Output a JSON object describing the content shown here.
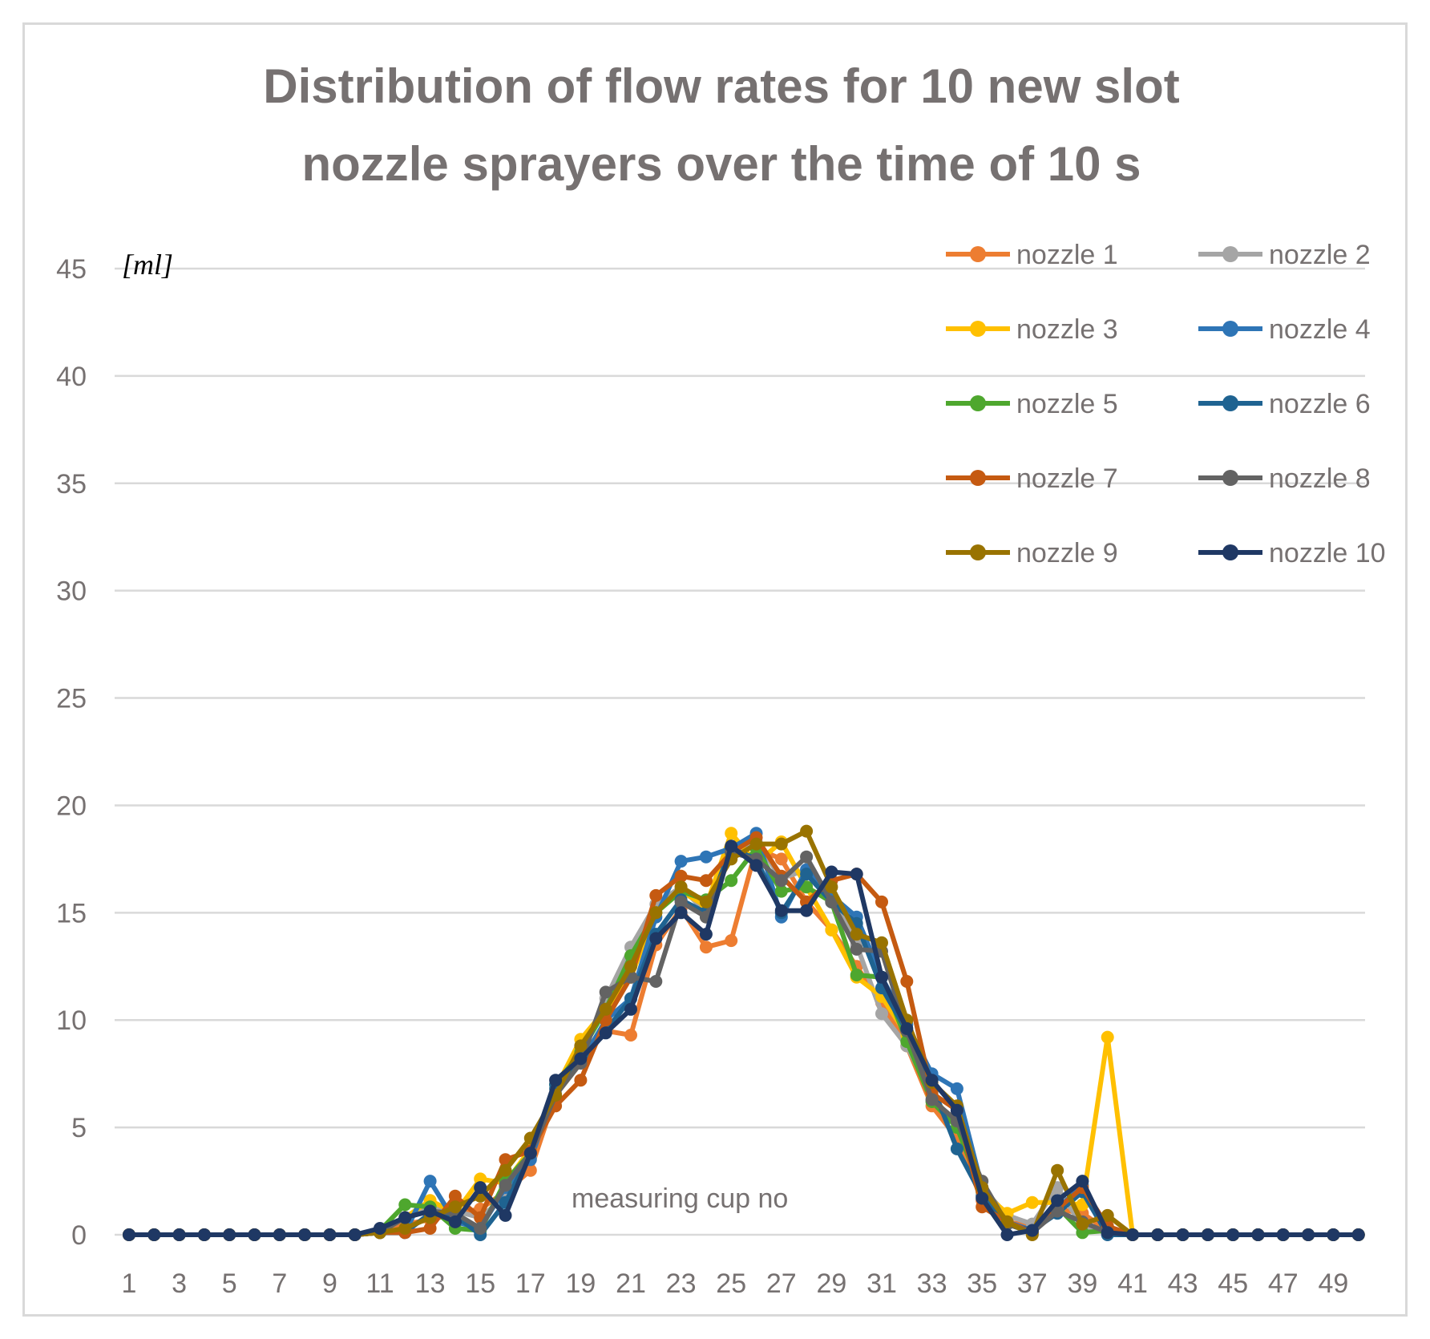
{
  "chart_data": {
    "type": "line",
    "title_lines": [
      "Distribution of flow rates for 10 new slot",
      "nozzle sprayers over the time of 10 s"
    ],
    "ylabel": "[ml]",
    "xlabel": "measuring cup no",
    "ylim": [
      0,
      45
    ],
    "yticks": [
      0,
      5,
      10,
      15,
      20,
      25,
      30,
      35,
      40,
      45
    ],
    "x": [
      1,
      2,
      3,
      4,
      5,
      6,
      7,
      8,
      9,
      10,
      11,
      12,
      13,
      14,
      15,
      16,
      17,
      18,
      19,
      20,
      21,
      22,
      23,
      24,
      25,
      26,
      27,
      28,
      29,
      30,
      31,
      32,
      33,
      34,
      35,
      36,
      37,
      38,
      39,
      40,
      41,
      42,
      43,
      44,
      45,
      46,
      47,
      48,
      49,
      50
    ],
    "xtick_labels": [
      "1",
      "3",
      "5",
      "7",
      "9",
      "11",
      "13",
      "15",
      "17",
      "19",
      "21",
      "23",
      "25",
      "27",
      "29",
      "31",
      "33",
      "35",
      "37",
      "39",
      "41",
      "43",
      "45",
      "47",
      "49"
    ],
    "grid": true,
    "legend_position": "top-right",
    "series": [
      {
        "name": "nozzle 1",
        "color": "#ED7D31",
        "values": [
          0,
          0,
          0,
          0,
          0,
          0,
          0,
          0,
          0,
          0,
          0.2,
          0.5,
          0.7,
          1,
          1.2,
          2,
          3,
          6.5,
          8,
          9.5,
          9.3,
          13.5,
          15.2,
          13.4,
          13.7,
          18,
          17.5,
          15.5,
          14.2,
          12.5,
          10.8,
          8.8,
          6,
          4.5,
          1.6,
          0.6,
          0.4,
          1.2,
          1,
          0.2,
          0,
          0,
          0,
          0,
          0,
          0,
          0,
          0,
          0,
          0
        ]
      },
      {
        "name": "nozzle 2",
        "color": "#A5A5A5",
        "values": [
          0,
          0,
          0,
          0,
          0,
          0,
          0,
          0,
          0,
          0,
          0.1,
          0.8,
          1.3,
          1.1,
          0.8,
          1.8,
          3.6,
          6.6,
          8.4,
          11,
          13.4,
          15.4,
          16.2,
          15,
          17.8,
          18.3,
          16.6,
          17,
          15.8,
          13.5,
          10.3,
          8.8,
          6.5,
          5,
          2.2,
          0.9,
          0.5,
          2.2,
          0.4,
          0.1,
          0,
          0,
          0,
          0,
          0,
          0,
          0,
          0,
          0,
          0
        ]
      },
      {
        "name": "nozzle 3",
        "color": "#FFC000",
        "values": [
          0,
          0,
          0,
          0,
          0,
          0,
          0,
          0,
          0,
          0,
          0.2,
          0.8,
          1.6,
          1,
          2.6,
          2.4,
          4,
          6.8,
          9.1,
          10.5,
          12,
          15,
          16,
          15.3,
          18.7,
          17.3,
          18.3,
          16.2,
          14.2,
          12,
          11.1,
          9.3,
          6.5,
          5,
          2,
          1,
          1.5,
          1.5,
          1.4,
          9.2,
          0,
          0,
          0,
          0,
          0,
          0,
          0,
          0,
          0,
          0
        ]
      },
      {
        "name": "nozzle 4",
        "color": "#2E75B6",
        "values": [
          0,
          0,
          0,
          0,
          0,
          0,
          0,
          0,
          0,
          0,
          0.1,
          0.1,
          2.5,
          0.6,
          0.3,
          2.2,
          3.5,
          6.8,
          8,
          10,
          11,
          14.8,
          17.4,
          17.6,
          18,
          18.7,
          14.8,
          17,
          15.8,
          14.8,
          12,
          9.8,
          7.5,
          6.8,
          2.2,
          0.6,
          0.2,
          1.2,
          2.3,
          0.1,
          0,
          0,
          0,
          0,
          0,
          0,
          0,
          0,
          0,
          0
        ]
      },
      {
        "name": "nozzle 5",
        "color": "#4EA72E",
        "values": [
          0,
          0,
          0,
          0,
          0,
          0,
          0,
          0,
          0,
          0,
          0.2,
          1.4,
          1.3,
          0.3,
          0.2,
          2.5,
          3.8,
          7,
          8.5,
          10.5,
          13,
          15,
          16,
          15.6,
          16.5,
          18,
          16,
          16.2,
          15.5,
          12.1,
          12,
          9,
          6.2,
          5,
          2,
          0.5,
          0.1,
          1.3,
          0.1,
          0.2,
          0,
          0,
          0,
          0,
          0,
          0,
          0,
          0,
          0,
          0
        ]
      },
      {
        "name": "nozzle 6",
        "color": "#1F6391",
        "values": [
          0,
          0,
          0,
          0,
          0,
          0,
          0,
          0,
          0,
          0,
          0.1,
          0.1,
          1,
          0.9,
          0,
          1.5,
          3.8,
          7,
          8,
          9.5,
          11,
          14,
          15.6,
          15,
          18,
          17.5,
          15,
          16.8,
          15.5,
          14.5,
          11.5,
          9.5,
          7,
          4,
          1.8,
          0.5,
          0.2,
          1,
          2,
          0,
          0,
          0,
          0,
          0,
          0,
          0,
          0,
          0,
          0,
          0
        ]
      },
      {
        "name": "nozzle 7",
        "color": "#C55A11",
        "values": [
          0,
          0,
          0,
          0,
          0,
          0,
          0,
          0,
          0,
          0,
          0.1,
          0.1,
          0.3,
          1.8,
          0.8,
          3.5,
          3.9,
          6,
          7.2,
          10,
          12,
          15.8,
          16.7,
          16.5,
          17.8,
          18.5,
          16.7,
          15.5,
          16.5,
          16.8,
          15.5,
          11.8,
          6.6,
          5.8,
          1.3,
          0.6,
          0.1,
          1.2,
          2.2,
          0.4,
          0,
          0,
          0,
          0,
          0,
          0,
          0,
          0,
          0,
          0
        ]
      },
      {
        "name": "nozzle 8",
        "color": "#636363",
        "values": [
          0,
          0,
          0,
          0,
          0,
          0,
          0,
          0,
          0,
          0,
          0.1,
          0.8,
          1.1,
          1,
          0.3,
          2.3,
          3.8,
          6.5,
          8,
          11.3,
          12,
          11.8,
          15.5,
          14.8,
          17.8,
          17.5,
          16.5,
          17.6,
          15.5,
          13.3,
          13.2,
          9.5,
          6.3,
          5.3,
          2.5,
          0.5,
          0.1,
          1.1,
          0.6,
          0.1,
          0,
          0,
          0,
          0,
          0,
          0,
          0,
          0,
          0,
          0
        ]
      },
      {
        "name": "nozzle 9",
        "color": "#997300",
        "values": [
          0,
          0,
          0,
          0,
          0,
          0,
          0,
          0,
          0,
          0,
          0.1,
          0.3,
          0.8,
          1.3,
          1.8,
          3,
          4.5,
          6.5,
          8.8,
          10.5,
          12.5,
          15,
          16.2,
          15.5,
          17.5,
          18.2,
          18.2,
          18.8,
          16.2,
          14,
          13.6,
          10,
          7.1,
          6,
          2.2,
          0.6,
          0,
          3,
          0.5,
          0.9,
          0,
          0,
          0,
          0,
          0,
          0,
          0,
          0,
          0,
          0
        ]
      },
      {
        "name": "nozzle 10",
        "color": "#1F3864",
        "values": [
          0,
          0,
          0,
          0,
          0,
          0,
          0,
          0,
          0,
          0,
          0.3,
          0.8,
          1.1,
          0.6,
          2.2,
          0.9,
          3.8,
          7.2,
          8.2,
          9.4,
          10.5,
          13.8,
          15,
          14,
          18.1,
          17.2,
          15.1,
          15.1,
          16.9,
          16.8,
          12,
          9.6,
          7.2,
          5.8,
          1.7,
          0,
          0.2,
          1.6,
          2.5,
          0.1,
          0,
          0,
          0,
          0,
          0,
          0,
          0,
          0,
          0,
          0
        ]
      }
    ]
  }
}
